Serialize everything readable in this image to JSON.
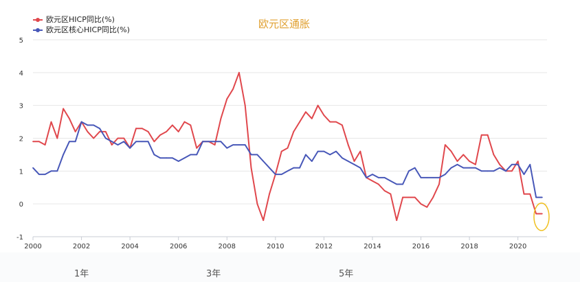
{
  "chart_data": {
    "type": "line",
    "title": "欧元区通胀",
    "title_color": "#e0a030",
    "xlim": [
      2000,
      2021.2
    ],
    "ylim": [
      -1,
      5
    ],
    "x_ticks": [
      2000,
      2002,
      2004,
      2006,
      2008,
      2010,
      2012,
      2014,
      2016,
      2018,
      2020
    ],
    "x_tick_labels": [
      "2000",
      "2002",
      "2004",
      "2006",
      "2008",
      "2010",
      "2012",
      "2014",
      "2016",
      "2018",
      "2020"
    ],
    "y_ticks": [
      -1,
      0,
      1,
      2,
      3,
      4,
      5
    ],
    "y_tick_labels": [
      "-1",
      "0",
      "1",
      "2",
      "3",
      "4",
      "5"
    ],
    "grid": "horizontal",
    "legend_position": "top-left",
    "series": [
      {
        "name": "欧元区HICP同比(%)",
        "color": "#e0474c",
        "x": [
          2000.0,
          2000.25,
          2000.5,
          2000.75,
          2001.0,
          2001.25,
          2001.5,
          2001.75,
          2002.0,
          2002.25,
          2002.5,
          2002.75,
          2003.0,
          2003.25,
          2003.5,
          2003.75,
          2004.0,
          2004.25,
          2004.5,
          2004.75,
          2005.0,
          2005.25,
          2005.5,
          2005.75,
          2006.0,
          2006.25,
          2006.5,
          2006.75,
          2007.0,
          2007.25,
          2007.5,
          2007.75,
          2008.0,
          2008.25,
          2008.5,
          2008.75,
          2009.0,
          2009.25,
          2009.5,
          2009.75,
          2010.0,
          2010.25,
          2010.5,
          2010.75,
          2011.0,
          2011.25,
          2011.5,
          2011.75,
          2012.0,
          2012.25,
          2012.5,
          2012.75,
          2013.0,
          2013.25,
          2013.5,
          2013.75,
          2014.0,
          2014.25,
          2014.5,
          2014.75,
          2015.0,
          2015.25,
          2015.5,
          2015.75,
          2016.0,
          2016.25,
          2016.5,
          2016.75,
          2017.0,
          2017.25,
          2017.5,
          2017.75,
          2018.0,
          2018.25,
          2018.5,
          2018.75,
          2019.0,
          2019.25,
          2019.5,
          2019.75,
          2020.0,
          2020.25,
          2020.5,
          2020.75,
          2021.0
        ],
        "values": [
          1.9,
          1.9,
          1.8,
          2.5,
          2.0,
          2.9,
          2.6,
          2.2,
          2.5,
          2.2,
          2.0,
          2.2,
          2.2,
          1.8,
          2.0,
          2.0,
          1.7,
          2.3,
          2.3,
          2.2,
          1.9,
          2.1,
          2.2,
          2.4,
          2.2,
          2.5,
          2.4,
          1.7,
          1.9,
          1.9,
          1.8,
          2.6,
          3.2,
          3.5,
          4.0,
          3.0,
          1.1,
          0.0,
          -0.5,
          0.3,
          0.9,
          1.6,
          1.7,
          2.2,
          2.5,
          2.8,
          2.6,
          3.0,
          2.7,
          2.5,
          2.5,
          2.4,
          1.8,
          1.3,
          1.6,
          0.8,
          0.7,
          0.6,
          0.4,
          0.3,
          -0.5,
          0.2,
          0.2,
          0.2,
          0.0,
          -0.1,
          0.2,
          0.6,
          1.8,
          1.6,
          1.3,
          1.5,
          1.3,
          1.2,
          2.1,
          2.1,
          1.5,
          1.2,
          1.0,
          1.0,
          1.3,
          0.3,
          0.3,
          -0.3,
          -0.3
        ]
      },
      {
        "name": "欧元区核心HICP同比(%)",
        "color": "#4757b8",
        "x": [
          2000.0,
          2000.25,
          2000.5,
          2000.75,
          2001.0,
          2001.25,
          2001.5,
          2001.75,
          2002.0,
          2002.25,
          2002.5,
          2002.75,
          2003.0,
          2003.25,
          2003.5,
          2003.75,
          2004.0,
          2004.25,
          2004.5,
          2004.75,
          2005.0,
          2005.25,
          2005.5,
          2005.75,
          2006.0,
          2006.25,
          2006.5,
          2006.75,
          2007.0,
          2007.25,
          2007.5,
          2007.75,
          2008.0,
          2008.25,
          2008.5,
          2008.75,
          2009.0,
          2009.25,
          2009.5,
          2009.75,
          2010.0,
          2010.25,
          2010.5,
          2010.75,
          2011.0,
          2011.25,
          2011.5,
          2011.75,
          2012.0,
          2012.25,
          2012.5,
          2012.75,
          2013.0,
          2013.25,
          2013.5,
          2013.75,
          2014.0,
          2014.25,
          2014.5,
          2014.75,
          2015.0,
          2015.25,
          2015.5,
          2015.75,
          2016.0,
          2016.25,
          2016.5,
          2016.75,
          2017.0,
          2017.25,
          2017.5,
          2017.75,
          2018.0,
          2018.25,
          2018.5,
          2018.75,
          2019.0,
          2019.25,
          2019.5,
          2019.75,
          2020.0,
          2020.25,
          2020.5,
          2020.75,
          2021.0
        ],
        "values": [
          1.1,
          0.9,
          0.9,
          1.0,
          1.0,
          1.5,
          1.9,
          1.9,
          2.5,
          2.4,
          2.4,
          2.3,
          2.0,
          1.9,
          1.8,
          1.9,
          1.7,
          1.9,
          1.9,
          1.9,
          1.5,
          1.4,
          1.4,
          1.4,
          1.3,
          1.4,
          1.5,
          1.5,
          1.9,
          1.9,
          1.9,
          1.9,
          1.7,
          1.8,
          1.8,
          1.8,
          1.5,
          1.5,
          1.3,
          1.1,
          0.9,
          0.9,
          1.0,
          1.1,
          1.1,
          1.5,
          1.3,
          1.6,
          1.6,
          1.5,
          1.6,
          1.4,
          1.3,
          1.2,
          1.1,
          0.8,
          0.9,
          0.8,
          0.8,
          0.7,
          0.6,
          0.6,
          1.0,
          1.1,
          0.8,
          0.8,
          0.8,
          0.8,
          0.9,
          1.1,
          1.2,
          1.1,
          1.1,
          1.1,
          1.0,
          1.0,
          1.0,
          1.1,
          1.0,
          1.2,
          1.2,
          0.9,
          1.2,
          0.2,
          0.2
        ]
      }
    ]
  },
  "periods": [
    "1年",
    "3年",
    "5年"
  ]
}
